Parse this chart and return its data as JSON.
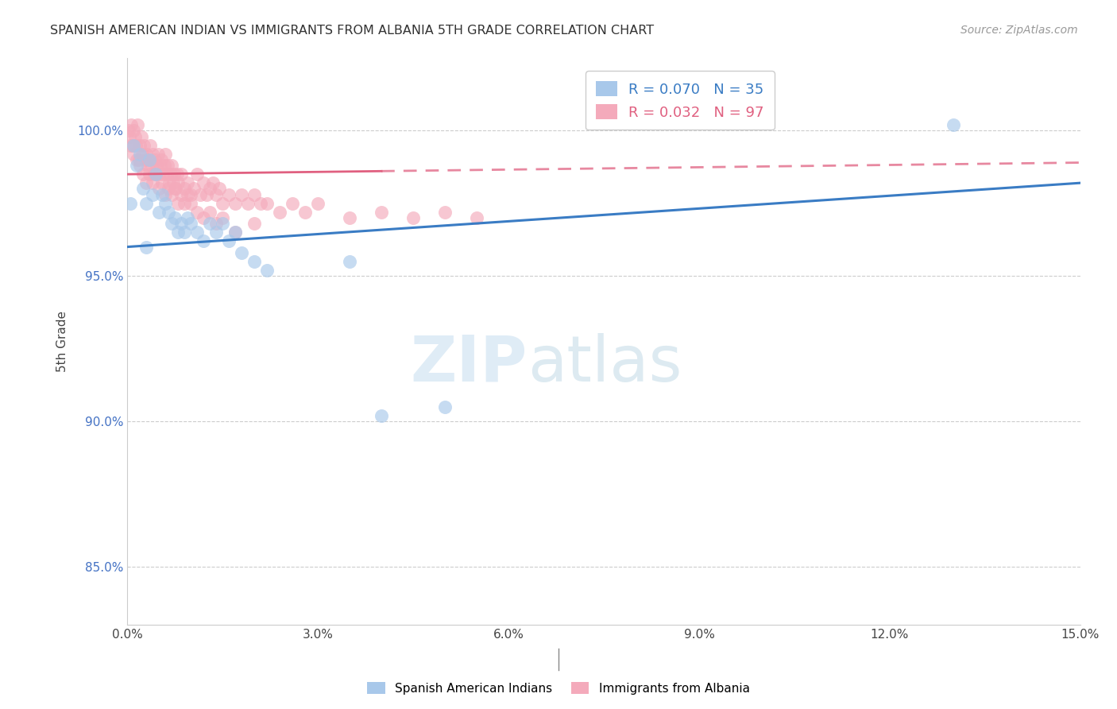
{
  "title": "SPANISH AMERICAN INDIAN VS IMMIGRANTS FROM ALBANIA 5TH GRADE CORRELATION CHART",
  "source": "Source: ZipAtlas.com",
  "ylabel": "5th Grade",
  "xlim": [
    0.0,
    15.0
  ],
  "ylim": [
    83.0,
    102.5
  ],
  "x_ticks": [
    0.0,
    3.0,
    6.0,
    9.0,
    12.0,
    15.0
  ],
  "x_tick_labels": [
    "0.0%",
    "3.0%",
    "6.0%",
    "9.0%",
    "12.0%",
    "15.0%"
  ],
  "y_ticks": [
    85.0,
    90.0,
    95.0,
    100.0
  ],
  "y_tick_labels": [
    "85.0%",
    "90.0%",
    "95.0%",
    "100.0%"
  ],
  "blue_R": 0.07,
  "blue_N": 35,
  "pink_R": 0.032,
  "pink_N": 97,
  "blue_color": "#A8C8EA",
  "pink_color": "#F4AABB",
  "blue_line_color": "#3A7CC4",
  "pink_line_color": "#E06080",
  "blue_line_y0": 96.0,
  "blue_line_y1": 98.2,
  "pink_line_y0": 98.5,
  "pink_line_y1": 98.9,
  "pink_solid_end_x": 4.0,
  "legend_label_blue": "Spanish American Indians",
  "legend_label_pink": "Immigrants from Albania",
  "watermark_zip": "ZIP",
  "watermark_atlas": "atlas",
  "blue_scatter_x": [
    0.05,
    0.1,
    0.15,
    0.2,
    0.25,
    0.3,
    0.35,
    0.4,
    0.45,
    0.5,
    0.55,
    0.6,
    0.65,
    0.7,
    0.75,
    0.8,
    0.85,
    0.9,
    0.95,
    1.0,
    1.1,
    1.2,
    1.3,
    1.4,
    1.5,
    1.6,
    1.7,
    1.8,
    2.0,
    2.2,
    3.5,
    4.0,
    5.0,
    13.0,
    0.3
  ],
  "blue_scatter_y": [
    97.5,
    99.5,
    98.8,
    99.2,
    98.0,
    97.5,
    99.0,
    97.8,
    98.5,
    97.2,
    97.8,
    97.5,
    97.2,
    96.8,
    97.0,
    96.5,
    96.8,
    96.5,
    97.0,
    96.8,
    96.5,
    96.2,
    96.8,
    96.5,
    96.8,
    96.2,
    96.5,
    95.8,
    95.5,
    95.2,
    95.5,
    90.2,
    90.5,
    100.2,
    96.0
  ],
  "pink_scatter_x": [
    0.02,
    0.04,
    0.06,
    0.08,
    0.1,
    0.12,
    0.14,
    0.16,
    0.18,
    0.2,
    0.22,
    0.24,
    0.26,
    0.28,
    0.3,
    0.32,
    0.34,
    0.36,
    0.38,
    0.4,
    0.42,
    0.44,
    0.46,
    0.48,
    0.5,
    0.52,
    0.54,
    0.56,
    0.58,
    0.6,
    0.62,
    0.64,
    0.66,
    0.68,
    0.7,
    0.72,
    0.74,
    0.76,
    0.78,
    0.8,
    0.85,
    0.9,
    0.95,
    1.0,
    1.05,
    1.1,
    1.15,
    1.2,
    1.25,
    1.3,
    1.35,
    1.4,
    1.45,
    1.5,
    1.6,
    1.7,
    1.8,
    1.9,
    2.0,
    2.1,
    2.2,
    2.4,
    2.6,
    2.8,
    3.0,
    3.5,
    4.0,
    4.5,
    5.0,
    5.5,
    0.05,
    0.1,
    0.15,
    0.2,
    0.25,
    0.3,
    0.35,
    0.4,
    0.45,
    0.5,
    0.55,
    0.6,
    0.65,
    0.7,
    0.75,
    0.8,
    0.85,
    0.9,
    0.95,
    1.0,
    1.1,
    1.2,
    1.3,
    1.4,
    1.5,
    1.7,
    2.0
  ],
  "pink_scatter_y": [
    100.0,
    99.8,
    100.2,
    99.5,
    100.0,
    99.8,
    99.5,
    100.2,
    99.0,
    99.5,
    99.8,
    99.2,
    99.5,
    99.0,
    99.2,
    98.8,
    99.0,
    99.5,
    98.8,
    99.2,
    98.5,
    99.0,
    98.8,
    99.2,
    98.5,
    98.8,
    99.0,
    98.5,
    98.8,
    99.2,
    98.5,
    98.8,
    98.2,
    98.5,
    98.8,
    98.2,
    98.5,
    98.0,
    98.5,
    98.2,
    98.5,
    98.0,
    98.2,
    97.8,
    98.0,
    98.5,
    97.8,
    98.2,
    97.8,
    98.0,
    98.2,
    97.8,
    98.0,
    97.5,
    97.8,
    97.5,
    97.8,
    97.5,
    97.8,
    97.5,
    97.5,
    97.2,
    97.5,
    97.2,
    97.5,
    97.0,
    97.2,
    97.0,
    97.2,
    97.0,
    99.5,
    99.2,
    99.0,
    98.8,
    98.5,
    98.2,
    98.5,
    98.2,
    98.5,
    98.0,
    98.2,
    97.8,
    98.0,
    97.8,
    98.0,
    97.5,
    97.8,
    97.5,
    97.8,
    97.5,
    97.2,
    97.0,
    97.2,
    96.8,
    97.0,
    96.5,
    96.8
  ]
}
